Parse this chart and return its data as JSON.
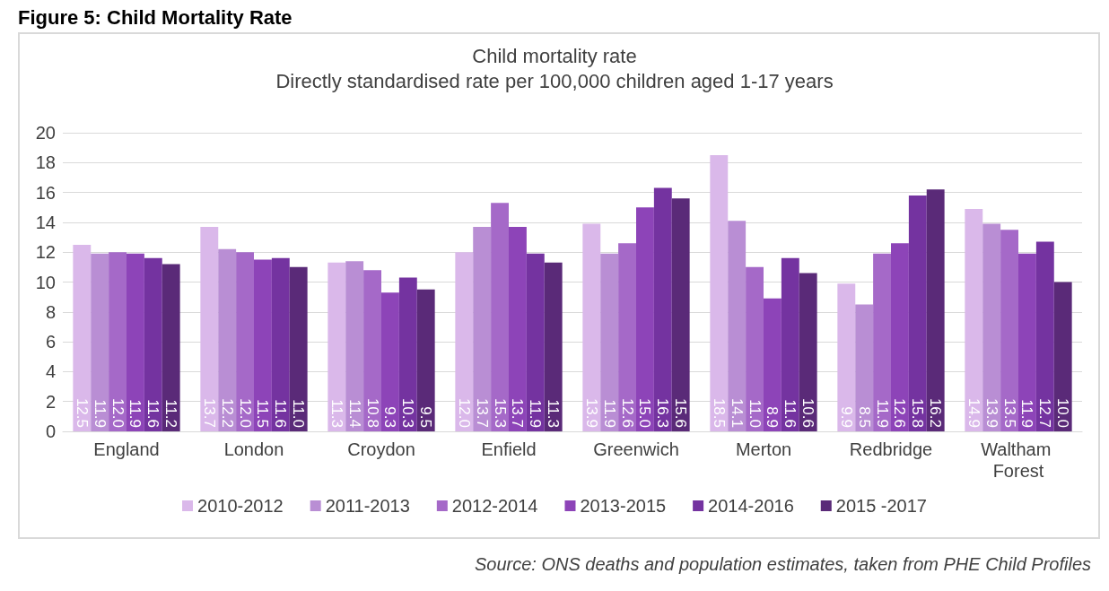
{
  "chart_data": {
    "type": "bar",
    "title": "Child mortality rate",
    "subtitle": "Directly standardised rate per 100,000 children aged 1-17 years",
    "categories": [
      "England",
      "London",
      "Croydon",
      "Enfield",
      "Greenwich",
      "Merton",
      "Redbridge",
      "Waltham Forest"
    ],
    "series": [
      {
        "name": "2010-2012",
        "color": "#dab8ea",
        "values": [
          12.5,
          13.7,
          11.3,
          12.0,
          13.9,
          18.5,
          9.9,
          14.9
        ],
        "value_labels": [
          "12.5",
          "13.7",
          "11.3",
          "12.0",
          "13.9",
          "18.5",
          "9.9",
          "14.9"
        ]
      },
      {
        "name": "2011-2013",
        "color": "#b98ed4",
        "values": [
          11.9,
          12.2,
          11.4,
          13.7,
          11.9,
          14.1,
          8.5,
          13.9
        ],
        "value_labels": [
          "11.9",
          "12.2",
          "11.4",
          "13.7",
          "11.9",
          "14.1",
          "8.5",
          "13.9"
        ]
      },
      {
        "name": "2012-2014",
        "color": "#a569c8",
        "values": [
          12.0,
          12.0,
          10.8,
          15.3,
          12.6,
          11.0,
          11.9,
          13.5
        ],
        "value_labels": [
          "12.0",
          "12.0",
          "10.8",
          "15.3",
          "12.6",
          "11.0",
          "11.9",
          "13.5"
        ]
      },
      {
        "name": "2013-2015",
        "color": "#8d44b8",
        "values": [
          11.9,
          11.5,
          9.3,
          13.7,
          15.0,
          8.9,
          12.6,
          11.9
        ],
        "value_labels": [
          "11.9",
          "11.5",
          "9.3",
          "13.7",
          "15.0",
          "8.9",
          "12.6",
          "11.9"
        ]
      },
      {
        "name": "2014-2016",
        "color": "#7433a0",
        "values": [
          11.6,
          11.6,
          10.3,
          11.9,
          16.3,
          11.6,
          15.8,
          12.7
        ],
        "value_labels": [
          "11.6",
          "11.6",
          "10.3",
          "11.9",
          "16.3",
          "11.6",
          "15.8",
          "12.7"
        ]
      },
      {
        "name": "2015 -2017",
        "color": "#5a2a78",
        "values": [
          11.2,
          11.0,
          9.5,
          11.3,
          15.6,
          10.6,
          16.2,
          10.0
        ],
        "value_labels": [
          "11.2",
          "11.0",
          "9.5",
          "11.3",
          "15.6",
          "10.6",
          "16.2",
          "10.0"
        ]
      }
    ],
    "ylim": [
      0,
      20
    ],
    "yticks": [
      0,
      2,
      4,
      6,
      8,
      10,
      12,
      14,
      16,
      18,
      20
    ],
    "grid": "y",
    "legend": "bottom",
    "annotations": [
      "Figure 5: Child Mortality Rate",
      "Source: ONS deaths and population estimates, taken from PHE Child Profiles"
    ]
  }
}
